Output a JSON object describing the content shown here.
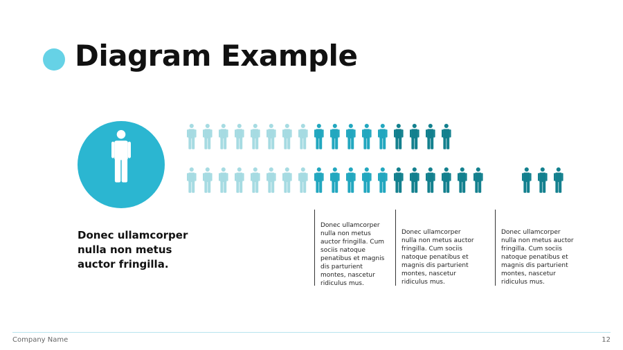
{
  "title": "Diagram Example",
  "lead_text": [
    "Donec ullamcorper",
    "nulla non metus",
    "auctor fringilla."
  ],
  "pictogram_rows": [
    {
      "groups": [
        {
          "count": 8,
          "color": "light"
        },
        {
          "count": 5,
          "color": "medium"
        },
        {
          "count": 4,
          "color": "dark"
        }
      ]
    },
    {
      "groups": [
        {
          "count": 8,
          "color": "light"
        },
        {
          "count": 5,
          "color": "medium"
        },
        {
          "count": 6,
          "color": "dark"
        },
        {
          "count": 3,
          "color": "dark",
          "gap_before": true
        }
      ]
    }
  ],
  "columns": [
    {
      "lines": [
        "Donec ullamcorper",
        "nulla non metus",
        "auctor fringilla. Cum",
        "sociis natoque",
        "penatibus et magnis",
        "dis parturient",
        "montes, nascetur",
        "ridiculus mus."
      ]
    },
    {
      "lines": [
        "Donec ullamcorper",
        "nulla non metus auctor",
        "fringilla. Cum sociis",
        "natoque penatibus et",
        "magnis dis parturient",
        "montes, nascetur",
        "ridiculus mus."
      ]
    },
    {
      "lines": [
        "Donec ullamcorper",
        "nulla non metus auctor",
        "fringilla. Cum sociis",
        "natoque penatibus et",
        "magnis dis parturient",
        "montes, nascetur",
        "ridiculus mus."
      ]
    }
  ],
  "footer": {
    "company": "Company Name",
    "page_number": "12"
  },
  "colors": {
    "accent_light": "#66d2e6",
    "circle": "#2bb6d1",
    "figure_light": "#a6dbe2",
    "figure_medium": "#22a7bf",
    "figure_dark": "#13808e",
    "figure_white": "#ffffff"
  },
  "icons": {
    "bullet": "circle-bullet",
    "figure": "person-icon"
  }
}
